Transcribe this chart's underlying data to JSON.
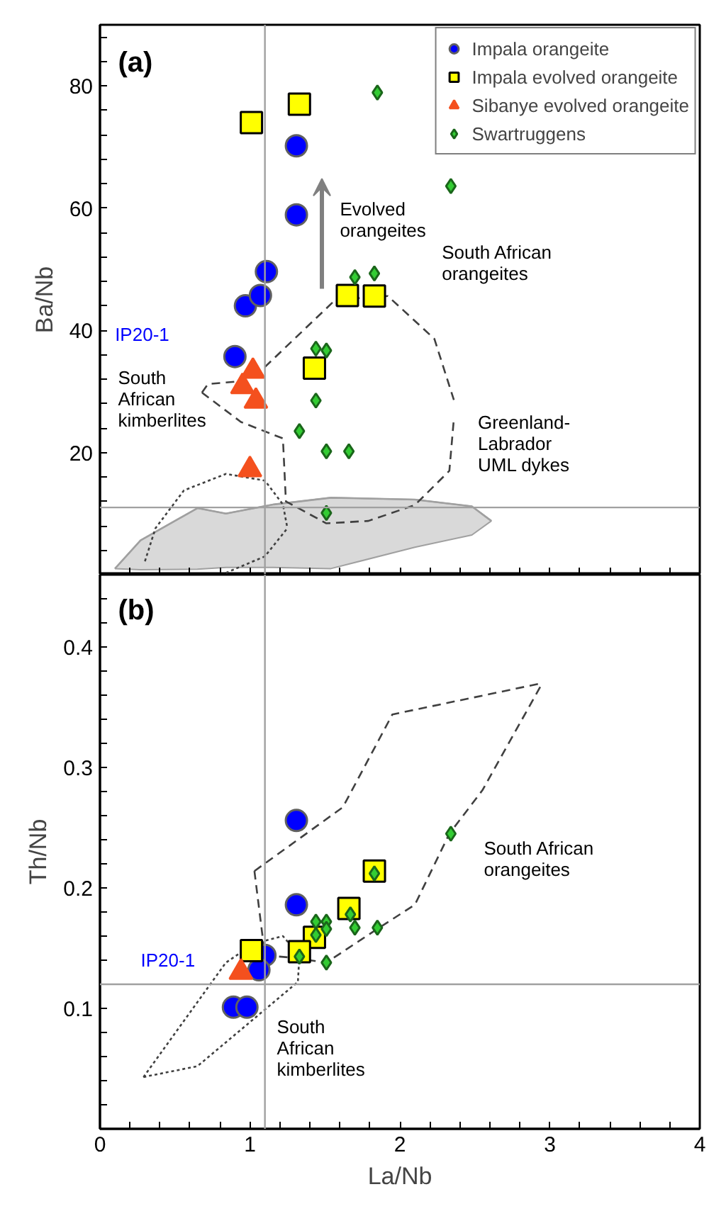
{
  "chart_data": [
    {
      "type": "scatter",
      "ylabel": "Ba/Nb",
      "xlim": [
        0,
        4
      ],
      "xticks": [
        0,
        {
          "value": 0.2,
          "label": null
        },
        {
          "value": 0.4,
          "label": null
        },
        {
          "value": 0.6,
          "label": null
        },
        {
          "value": 0.8,
          "label": null
        },
        1,
        {
          "value": 1.2,
          "label": null
        },
        {
          "value": 1.4,
          "label": null
        },
        {
          "value": 1.6,
          "label": null
        },
        {
          "value": 1.8,
          "label": null
        },
        2,
        {
          "value": 2.2,
          "label": null
        },
        {
          "value": 2.4,
          "label": null
        },
        {
          "value": 2.6,
          "label": null
        },
        {
          "value": 2.8,
          "label": null
        },
        3,
        {
          "value": 3.2,
          "label": null
        },
        {
          "value": 3.4,
          "label": null
        },
        {
          "value": 3.6,
          "label": null
        },
        {
          "value": 3.8,
          "label": null
        },
        4
      ],
      "ylim": [
        0,
        90
      ],
      "yticks": [
        {
          "value": 4,
          "label": null
        },
        {
          "value": 8,
          "label": null
        },
        {
          "value": 12,
          "label": null
        },
        {
          "value": 16,
          "label": null
        },
        20,
        {
          "value": 24,
          "label": null
        },
        {
          "value": 28,
          "label": null
        },
        {
          "value": 32,
          "label": null
        },
        {
          "value": 36,
          "label": null
        },
        40,
        {
          "value": 44,
          "label": null
        },
        {
          "value": 48,
          "label": null
        },
        {
          "value": 52,
          "label": null
        },
        {
          "value": 56,
          "label": null
        },
        60,
        {
          "value": 64,
          "label": null
        },
        {
          "value": 68,
          "label": null
        },
        {
          "value": 72,
          "label": null
        },
        {
          "value": 76,
          "label": null
        },
        80,
        {
          "value": 84,
          "label": null
        },
        {
          "value": 88,
          "label": null
        }
      ],
      "tick_labels": "y",
      "grid": false,
      "legend": "top right",
      "series": [
        {
          "type": "line",
          "color": "#a0a0a0",
          "x": [
            0.1,
            0.27,
            0.65,
            0.84,
            1.16,
            1.54,
            2.1,
            2.48,
            2.61
          ],
          "values": [
            1,
            5.6,
            10.9,
            10,
            11.5,
            12.6,
            12.3,
            11.2,
            8.8
          ],
          "upper": [
            1,
            5.6,
            10.9,
            10,
            11.5,
            12.6,
            12.3,
            11.2,
            8.8
          ],
          "lower": [
            1,
            0.8,
            0.9,
            1.2,
            1.2,
            1,
            4.5,
            6.5,
            8.8
          ]
        },
        {
          "type": "line",
          "color": "#404040",
          "line_style": "dashed",
          "x": [
            0.68,
            0.72,
            0.91,
            1.1,
            1.57,
            1.92,
            2.23,
            2.36
          ],
          "values": [
            29.8,
            31.2,
            31.6,
            34,
            45,
            45.6,
            38.6,
            28.6
          ]
        },
        {
          "type": "line",
          "color": "#404040",
          "line_style": "dashed",
          "x": [
            0.68,
            0.94,
            1.22,
            1.24,
            1.51,
            1.79,
            2.1,
            2.33,
            2.36
          ],
          "values": [
            29.8,
            25,
            22.3,
            12,
            8.4,
            8.8,
            11.4,
            17,
            25.5
          ]
        },
        {
          "type": "line",
          "color": "#404040",
          "line_style": "dotted",
          "x": [
            0.84,
            1.1,
            1.25
          ],
          "values": [
            0.3,
            3,
            7.6
          ]
        },
        {
          "type": "line",
          "color": "#404040",
          "line_style": "dotted",
          "x": [
            0.3,
            0.37,
            0.56,
            0.84,
            1.1,
            1.22,
            1.25
          ],
          "values": [
            2.2,
            7.6,
            13.8,
            16.5,
            15.4,
            11.5,
            7.6
          ]
        },
        {
          "name": "Impala orangeite",
          "marker": "circle",
          "color": "#0000ff",
          "x": [
            0.9,
            0.97,
            1.07,
            1.11,
            1.31,
            1.31
          ],
          "values": [
            35.7,
            44,
            45.7,
            49.6,
            58.9,
            70.2
          ]
        },
        {
          "name": "Impala evolved orangeite",
          "marker": "square",
          "color": "#ffff00",
          "x": [
            1.01,
            1.33,
            1.65,
            1.83,
            1.43
          ],
          "values": [
            74,
            77,
            45.7,
            45.6,
            33.8
          ]
        },
        {
          "name": "Sibanye evolved orangeite",
          "marker": "triangle",
          "color": "#f4501e",
          "x": [
            1.02,
            0.95,
            1.04,
            1.0
          ],
          "values": [
            33.3,
            30.8,
            28.4,
            17.2
          ]
        },
        {
          "name": "Swartruggens",
          "marker": "diamond",
          "color": "#33cc33",
          "x": [
            1.85,
            2.34,
            1.7,
            1.83,
            1.44,
            1.51,
            1.44,
            1.33,
            1.51,
            1.66,
            1.51
          ],
          "values": [
            78.9,
            63.6,
            48.7,
            49.3,
            37,
            36.7,
            28.5,
            23.5,
            20.2,
            20.2,
            10.1
          ]
        }
      ],
      "ref_lines": [
        {
          "axis": "x",
          "value": 1.1,
          "color": "#a0a0a0"
        },
        {
          "axis": "y",
          "value": 11,
          "color": "#a0a0a0"
        }
      ],
      "annotations": [
        "(a)",
        "Evolved\norangeites",
        "South African\norangeites",
        "South\nAfrican\nkimberlites",
        "Greenland-\nLabrador\nUML dykes",
        "IP20-1"
      ]
    },
    {
      "type": "scatter",
      "xlabel": "La/Nb",
      "ylabel": "Th/Nb",
      "xlim": [
        0,
        4
      ],
      "xticks": [
        0,
        {
          "value": 0.2,
          "label": null
        },
        {
          "value": 0.4,
          "label": null
        },
        {
          "value": 0.6,
          "label": null
        },
        {
          "value": 0.8,
          "label": null
        },
        1,
        {
          "value": 1.2,
          "label": null
        },
        {
          "value": 1.4,
          "label": null
        },
        {
          "value": 1.6,
          "label": null
        },
        {
          "value": 1.8,
          "label": null
        },
        2,
        {
          "value": 2.2,
          "label": null
        },
        {
          "value": 2.4,
          "label": null
        },
        {
          "value": 2.6,
          "label": null
        },
        {
          "value": 2.8,
          "label": null
        },
        3,
        {
          "value": 3.2,
          "label": null
        },
        {
          "value": 3.4,
          "label": null
        },
        {
          "value": 3.6,
          "label": null
        },
        {
          "value": 3.8,
          "label": null
        },
        4
      ],
      "ylim": [
        0,
        0.46
      ],
      "yticks": [
        {
          "value": 0.02,
          "label": null
        },
        {
          "value": 0.04,
          "label": null
        },
        {
          "value": 0.06,
          "label": null
        },
        {
          "value": 0.08,
          "label": null
        },
        {
          "value": 0.1,
          "label": "0.1"
        },
        {
          "value": 0.12,
          "label": null
        },
        {
          "value": 0.14,
          "label": null
        },
        {
          "value": 0.16,
          "label": null
        },
        {
          "value": 0.18,
          "label": null
        },
        {
          "value": 0.2,
          "label": "0.2"
        },
        {
          "value": 0.22,
          "label": null
        },
        {
          "value": 0.24,
          "label": null
        },
        {
          "value": 0.26,
          "label": null
        },
        {
          "value": 0.28,
          "label": null
        },
        {
          "value": 0.3,
          "label": "0.3"
        },
        {
          "value": 0.32,
          "label": null
        },
        {
          "value": 0.34,
          "label": null
        },
        {
          "value": 0.36,
          "label": null
        },
        {
          "value": 0.38,
          "label": null
        },
        {
          "value": 0.4,
          "label": "0.4"
        },
        {
          "value": 0.42,
          "label": null
        },
        {
          "value": 0.44,
          "label": null
        }
      ],
      "grid": false,
      "series": [
        {
          "type": "line",
          "color": "#404040",
          "line_style": "dashed",
          "x": [
            1.03,
            1.62,
            1.95,
            2.95
          ],
          "values": [
            0.214,
            0.267,
            0.344,
            0.37
          ]
        },
        {
          "type": "line",
          "color": "#404040",
          "line_style": "dashed",
          "x": [
            1.1,
            1.29,
            1.51,
            1.85,
            2.1,
            2.33,
            2.55,
            2.95
          ],
          "values": [
            0.144,
            0.142,
            0.138,
            0.166,
            0.186,
            0.245,
            0.281,
            0.37
          ]
        },
        {
          "type": "line",
          "color": "#404040",
          "line_style": "dashed",
          "x": [
            1.03,
            1.1
          ],
          "values": [
            0.214,
            0.144
          ]
        },
        {
          "type": "line",
          "color": "#404040",
          "line_style": "dotted",
          "x": [
            0.29,
            0.65,
            1.32,
            1.33
          ],
          "values": [
            0.043,
            0.052,
            0.122,
            0.144
          ]
        },
        {
          "type": "line",
          "color": "#404040",
          "line_style": "dotted",
          "x": [
            0.29,
            0.84,
            1.03,
            1.22,
            1.33
          ],
          "values": [
            0.043,
            0.138,
            0.154,
            0.16,
            0.144
          ]
        },
        {
          "marker": "circle",
          "color": "#0000ff",
          "x": [
            1.31,
            1.31,
            1.1,
            1.06,
            0.89,
            0.98
          ],
          "values": [
            0.256,
            0.186,
            0.144,
            0.132,
            0.101,
            0.101
          ]
        },
        {
          "marker": "square",
          "color": "#ffff00",
          "x": [
            1.83,
            1.66,
            1.43,
            1.33,
            1.01
          ],
          "values": [
            0.214,
            0.183,
            0.159,
            0.147,
            0.148
          ]
        },
        {
          "marker": "triangle",
          "color": "#f4501e",
          "x": [
            0.94
          ],
          "values": [
            0.13
          ]
        },
        {
          "marker": "diamond",
          "color": "#33cc33",
          "x": [
            2.34,
            1.83,
            1.67,
            1.44,
            1.51,
            1.44,
            1.51,
            1.7,
            1.85,
            1.33,
            1.51
          ],
          "values": [
            0.245,
            0.212,
            0.178,
            0.172,
            0.172,
            0.161,
            0.166,
            0.167,
            0.167,
            0.143,
            0.138
          ]
        }
      ],
      "ref_lines": [
        {
          "axis": "x",
          "value": 1.1,
          "color": "#a0a0a0"
        },
        {
          "axis": "y",
          "value": 0.12,
          "color": "#a0a0a0"
        }
      ],
      "annotations": [
        "(b)",
        "South African\norangeites",
        "South\nAfrican\nkimberlites",
        "IP20-1"
      ]
    }
  ]
}
